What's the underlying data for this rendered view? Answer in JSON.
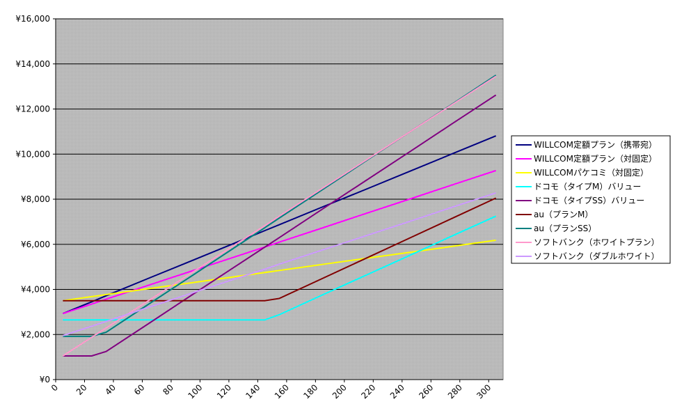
{
  "chart_data": {
    "type": "line",
    "x": [
      5,
      25,
      35,
      65,
      95,
      125,
      145,
      155,
      185,
      215,
      245,
      275,
      305
    ],
    "xlim": [
      0,
      310
    ],
    "xticks": [
      0,
      20,
      40,
      60,
      80,
      100,
      120,
      140,
      160,
      180,
      200,
      220,
      240,
      260,
      280,
      300
    ],
    "ylim": [
      0,
      16000
    ],
    "yticks": [
      {
        "value": 0,
        "label": "¥0"
      },
      {
        "value": 2000,
        "label": "¥2,000"
      },
      {
        "value": 4000,
        "label": "¥4,000"
      },
      {
        "value": 6000,
        "label": "¥6,000"
      },
      {
        "value": 8000,
        "label": "¥8,000"
      },
      {
        "value": 10000,
        "label": "¥10,000"
      },
      {
        "value": 12000,
        "label": "¥12,000"
      },
      {
        "value": 14000,
        "label": "¥14,000"
      },
      {
        "value": 16000,
        "label": "¥16,000"
      }
    ],
    "grid": true,
    "legend": "right",
    "series": [
      {
        "name": "WILLCOM定額プラン（携帯宛）",
        "color": "#000080",
        "values": [
          2930,
          3450,
          3720,
          4510,
          5290,
          6080,
          6610,
          6870,
          7660,
          8440,
          9230,
          10020,
          10810
        ]
      },
      {
        "name": "WILLCOM定額プラン（対固定）",
        "color": "#ff00ff",
        "values": [
          2930,
          3350,
          3570,
          4200,
          4830,
          5460,
          5880,
          6100,
          6730,
          7370,
          8000,
          8640,
          9270
        ]
      },
      {
        "name": "WILLCOMパケコミ（対固定）",
        "color": "#ffff00",
        "values": [
          3500,
          3680,
          3770,
          4040,
          4300,
          4570,
          4750,
          4840,
          5110,
          5380,
          5640,
          5910,
          6180
        ]
      },
      {
        "name": "ドコモ（タイプM）バリュー",
        "color": "#00ffff",
        "values": [
          2650,
          2650,
          2650,
          2650,
          2650,
          2650,
          2650,
          2880,
          3760,
          4630,
          5500,
          6380,
          7250
        ]
      },
      {
        "name": "ドコモ（タイプSS）バリュー",
        "color": "#800080",
        "values": [
          1050,
          1050,
          1250,
          2510,
          3780,
          5040,
          5880,
          6300,
          7570,
          8830,
          10090,
          11360,
          12620
        ]
      },
      {
        "name": "au（プランM）",
        "color": "#800000",
        "values": [
          3500,
          3500,
          3500,
          3500,
          3500,
          3500,
          3500,
          3600,
          4490,
          5380,
          6270,
          7160,
          8050
        ]
      },
      {
        "name": "au（プランSS）",
        "color": "#008080",
        "values": [
          1920,
          1920,
          2100,
          3370,
          4630,
          5900,
          6740,
          7170,
          8430,
          9700,
          10970,
          12230,
          13500
        ]
      },
      {
        "name": "ソフトバンク（ホワイトプラン）",
        "color": "#ff99cc",
        "values": [
          1050,
          1880,
          2290,
          3530,
          4770,
          6010,
          6830,
          7250,
          8490,
          9730,
          10970,
          12210,
          13450
        ]
      },
      {
        "name": "ソフトバンク（ダブルホワイト）",
        "color": "#cc99ff",
        "values": [
          1950,
          2370,
          2580,
          3220,
          3850,
          4480,
          4900,
          5120,
          5750,
          6380,
          7010,
          7650,
          8280
        ]
      }
    ]
  }
}
